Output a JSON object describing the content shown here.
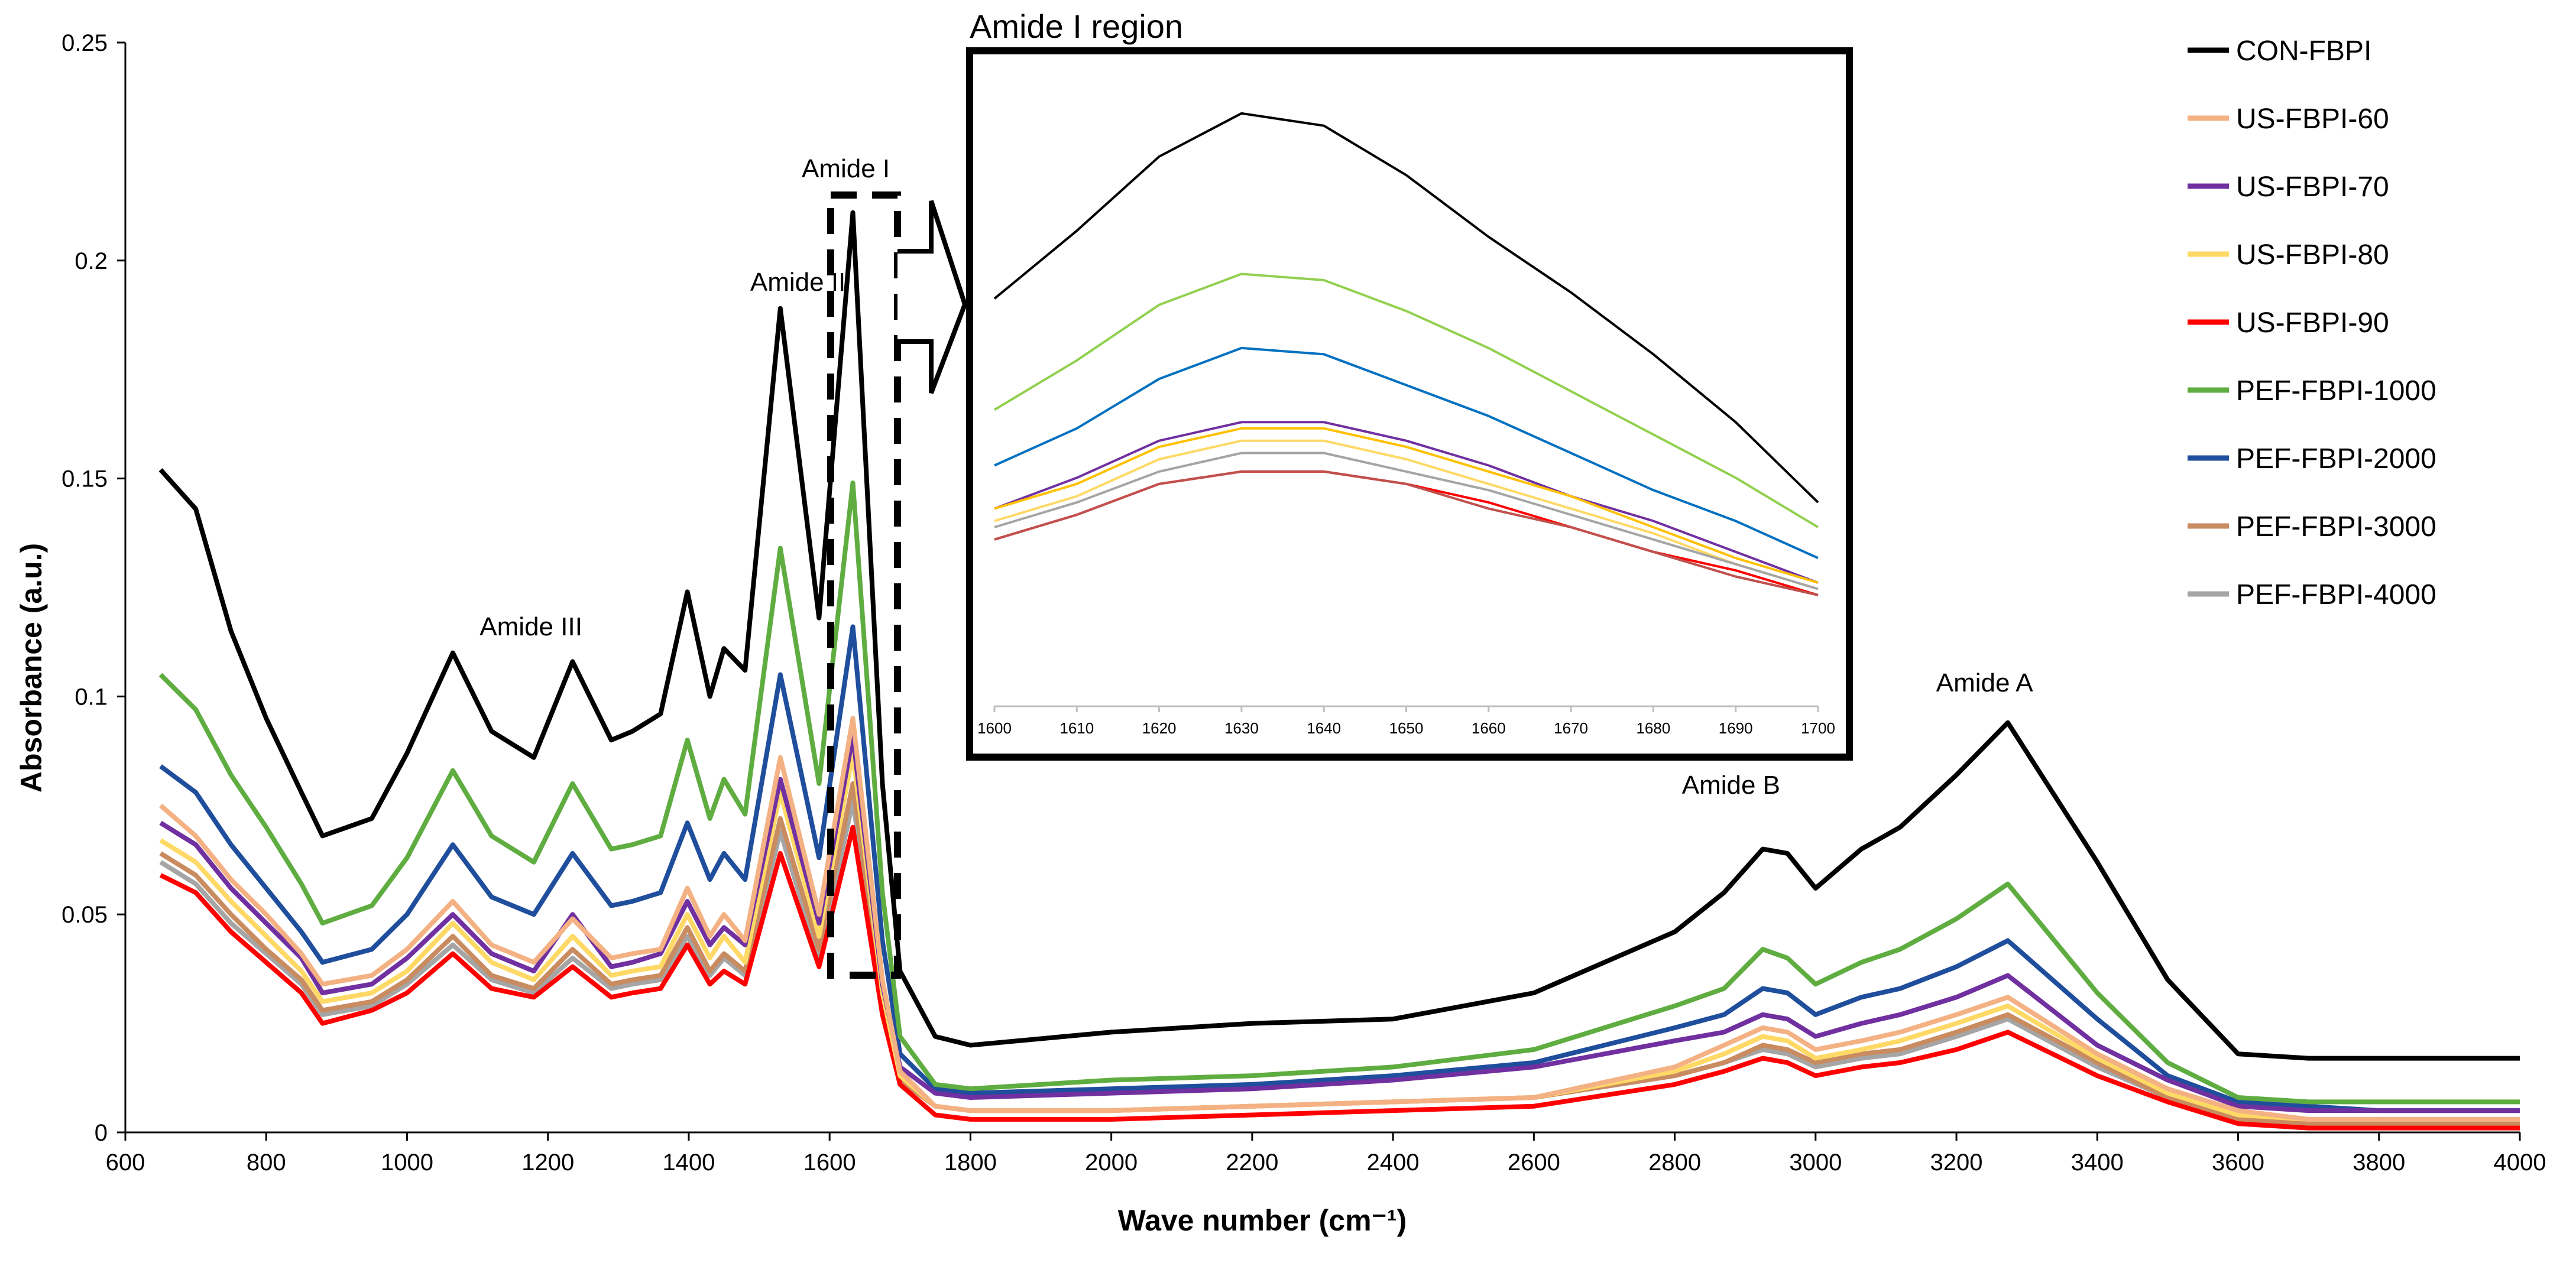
{
  "chart_data": [
    {
      "type": "line",
      "title": "",
      "xlabel": "Wave number (cm⁻¹)",
      "ylabel": "Absorbance (a.u.)",
      "xlim": [
        600,
        4000
      ],
      "ylim": [
        0,
        0.25
      ],
      "xticks": [
        "600",
        "800",
        "1000",
        "1200",
        "1400",
        "1600",
        "1800",
        "2000",
        "2200",
        "2400",
        "2600",
        "2800",
        "3000",
        "3200",
        "3400",
        "3600",
        "3800",
        "4000"
      ],
      "yticks": [
        "0",
        "0.05",
        "0.1",
        "0.15",
        "0.2",
        "0.25"
      ],
      "legend_position": "right",
      "x": [
        650,
        700,
        750,
        800,
        850,
        880,
        950,
        1000,
        1065,
        1120,
        1180,
        1235,
        1290,
        1320,
        1360,
        1398,
        1430,
        1450,
        1480,
        1530,
        1585,
        1633,
        1675,
        1700,
        1750,
        1800,
        2000,
        2200,
        2400,
        2600,
        2800,
        2870,
        2925,
        2960,
        3000,
        3065,
        3120,
        3200,
        3273,
        3400,
        3500,
        3600,
        3700,
        3800,
        4000
      ],
      "series": [
        {
          "name": "CON-FBPI",
          "color": "#000000",
          "values": [
            0.152,
            0.143,
            0.115,
            0.095,
            0.078,
            0.068,
            0.072,
            0.087,
            0.11,
            0.092,
            0.086,
            0.108,
            0.09,
            0.092,
            0.096,
            0.124,
            0.1,
            0.111,
            0.106,
            0.189,
            0.118,
            0.211,
            0.08,
            0.037,
            0.022,
            0.02,
            0.023,
            0.025,
            0.026,
            0.032,
            0.046,
            0.055,
            0.065,
            0.064,
            0.056,
            0.065,
            0.07,
            0.082,
            0.094,
            0.062,
            0.035,
            0.018,
            0.017,
            0.017,
            0.017
          ]
        },
        {
          "name": "US-FBPI-60",
          "color": "#F4B183",
          "values": [
            0.075,
            0.068,
            0.058,
            0.05,
            0.041,
            0.034,
            0.036,
            0.042,
            0.053,
            0.043,
            0.039,
            0.049,
            0.04,
            0.041,
            0.042,
            0.056,
            0.045,
            0.05,
            0.044,
            0.086,
            0.05,
            0.095,
            0.035,
            0.014,
            0.006,
            0.005,
            0.005,
            0.006,
            0.007,
            0.008,
            0.015,
            0.02,
            0.024,
            0.023,
            0.019,
            0.021,
            0.023,
            0.027,
            0.031,
            0.018,
            0.01,
            0.005,
            0.003,
            0.003,
            0.003
          ]
        },
        {
          "name": "US-FBPI-70",
          "color": "#7030A0",
          "values": [
            0.071,
            0.066,
            0.056,
            0.048,
            0.04,
            0.032,
            0.034,
            0.04,
            0.05,
            0.041,
            0.037,
            0.05,
            0.038,
            0.039,
            0.041,
            0.053,
            0.043,
            0.047,
            0.043,
            0.081,
            0.048,
            0.091,
            0.034,
            0.015,
            0.009,
            0.008,
            0.009,
            0.01,
            0.012,
            0.015,
            0.021,
            0.023,
            0.027,
            0.026,
            0.022,
            0.025,
            0.027,
            0.031,
            0.036,
            0.02,
            0.012,
            0.006,
            0.005,
            0.005,
            0.005
          ]
        },
        {
          "name": "US-FBPI-80",
          "color": "#FFD966",
          "values": [
            0.067,
            0.062,
            0.053,
            0.045,
            0.037,
            0.03,
            0.032,
            0.037,
            0.048,
            0.039,
            0.035,
            0.045,
            0.036,
            0.037,
            0.038,
            0.05,
            0.04,
            0.045,
            0.039,
            0.078,
            0.045,
            0.087,
            0.032,
            0.013,
            0.006,
            0.005,
            0.005,
            0.006,
            0.007,
            0.008,
            0.014,
            0.018,
            0.022,
            0.021,
            0.017,
            0.019,
            0.021,
            0.025,
            0.029,
            0.017,
            0.009,
            0.004,
            0.003,
            0.003,
            0.003
          ]
        },
        {
          "name": "US-FBPI-90",
          "color": "#FF0000",
          "values": [
            0.059,
            0.055,
            0.046,
            0.039,
            0.032,
            0.025,
            0.028,
            0.032,
            0.041,
            0.033,
            0.031,
            0.038,
            0.031,
            0.032,
            0.033,
            0.043,
            0.034,
            0.037,
            0.034,
            0.064,
            0.038,
            0.07,
            0.027,
            0.011,
            0.004,
            0.003,
            0.003,
            0.004,
            0.005,
            0.006,
            0.011,
            0.014,
            0.017,
            0.016,
            0.013,
            0.015,
            0.016,
            0.019,
            0.023,
            0.013,
            0.007,
            0.002,
            0.001,
            0.001,
            0.001
          ]
        },
        {
          "name": "PEF-FBPI-1000",
          "color": "#5FAD41",
          "values": [
            0.105,
            0.097,
            0.082,
            0.07,
            0.057,
            0.048,
            0.052,
            0.063,
            0.083,
            0.068,
            0.062,
            0.08,
            0.065,
            0.066,
            0.068,
            0.09,
            0.072,
            0.081,
            0.073,
            0.134,
            0.08,
            0.149,
            0.055,
            0.022,
            0.011,
            0.01,
            0.012,
            0.013,
            0.015,
            0.019,
            0.029,
            0.033,
            0.042,
            0.04,
            0.034,
            0.039,
            0.042,
            0.049,
            0.057,
            0.032,
            0.016,
            0.008,
            0.007,
            0.007,
            0.007
          ]
        },
        {
          "name": "PEF-FBPI-2000",
          "color": "#1F4E9C",
          "values": [
            0.084,
            0.078,
            0.066,
            0.056,
            0.046,
            0.039,
            0.042,
            0.05,
            0.066,
            0.054,
            0.05,
            0.064,
            0.052,
            0.053,
            0.055,
            0.071,
            0.058,
            0.064,
            0.058,
            0.105,
            0.063,
            0.116,
            0.044,
            0.018,
            0.01,
            0.009,
            0.01,
            0.011,
            0.013,
            0.016,
            0.024,
            0.027,
            0.033,
            0.032,
            0.027,
            0.031,
            0.033,
            0.038,
            0.044,
            0.026,
            0.013,
            0.007,
            0.006,
            0.005,
            0.005
          ]
        },
        {
          "name": "PEF-FBPI-3000",
          "color": "#C98B60",
          "values": [
            0.064,
            0.059,
            0.05,
            0.042,
            0.035,
            0.028,
            0.03,
            0.035,
            0.045,
            0.036,
            0.033,
            0.042,
            0.034,
            0.035,
            0.036,
            0.047,
            0.037,
            0.041,
            0.037,
            0.072,
            0.042,
            0.08,
            0.03,
            0.012,
            0.006,
            0.005,
            0.005,
            0.006,
            0.007,
            0.008,
            0.013,
            0.016,
            0.02,
            0.019,
            0.016,
            0.018,
            0.019,
            0.023,
            0.027,
            0.016,
            0.008,
            0.003,
            0.002,
            0.002,
            0.002
          ]
        },
        {
          "name": "PEF-FBPI-4000",
          "color": "#A5A5A5",
          "values": [
            0.062,
            0.057,
            0.048,
            0.041,
            0.034,
            0.027,
            0.029,
            0.034,
            0.043,
            0.035,
            0.032,
            0.04,
            0.033,
            0.034,
            0.035,
            0.045,
            0.036,
            0.04,
            0.036,
            0.069,
            0.04,
            0.076,
            0.029,
            0.012,
            0.006,
            0.005,
            0.005,
            0.006,
            0.007,
            0.008,
            0.013,
            0.016,
            0.019,
            0.018,
            0.015,
            0.017,
            0.018,
            0.022,
            0.026,
            0.015,
            0.008,
            0.003,
            0.002,
            0.002,
            0.002
          ]
        }
      ],
      "annotations": [
        "Amide III",
        "Amide II",
        "Amide I",
        "Amide B",
        "Amide A"
      ],
      "annotation_x": [
        1176,
        1555,
        1623,
        2880,
        3240
      ]
    },
    {
      "type": "line",
      "title": "Amide I region",
      "xlim": [
        1600,
        1700
      ],
      "ylim": [
        0,
        1
      ],
      "xticks": [
        "1600",
        "1610",
        "1620",
        "1630",
        "1640",
        "1650",
        "1660",
        "1670",
        "1680",
        "1690",
        "1700"
      ],
      "x": [
        1600,
        1610,
        1620,
        1630,
        1640,
        1650,
        1660,
        1670,
        1680,
        1690,
        1700
      ],
      "series": [
        {
          "name": "CON-FBPI",
          "color": "#000000",
          "values": [
            0.66,
            0.77,
            0.89,
            0.96,
            0.94,
            0.86,
            0.76,
            0.67,
            0.57,
            0.46,
            0.33
          ]
        },
        {
          "name": "PEF-FBPI-1000",
          "color": "#92D050",
          "values": [
            0.48,
            0.56,
            0.65,
            0.7,
            0.69,
            0.64,
            0.58,
            0.51,
            0.44,
            0.37,
            0.29
          ]
        },
        {
          "name": "PEF-FBPI-2000",
          "color": "#0070C0",
          "values": [
            0.39,
            0.45,
            0.53,
            0.58,
            0.57,
            0.52,
            0.47,
            0.41,
            0.35,
            0.3,
            0.24
          ]
        },
        {
          "name": "US-FBPI-70",
          "color": "#7030A0",
          "values": [
            0.32,
            0.37,
            0.43,
            0.46,
            0.46,
            0.43,
            0.39,
            0.34,
            0.3,
            0.25,
            0.2
          ]
        },
        {
          "name": "US-FBPI-80 (a)",
          "color": "#FFC000",
          "values": [
            0.32,
            0.36,
            0.42,
            0.45,
            0.45,
            0.42,
            0.38,
            0.34,
            0.29,
            0.24,
            0.2
          ]
        },
        {
          "name": "US-FBPI-80 (b)",
          "color": "#FFD966",
          "values": [
            0.3,
            0.34,
            0.4,
            0.43,
            0.43,
            0.4,
            0.36,
            0.32,
            0.28,
            0.23,
            0.19
          ]
        },
        {
          "name": "PEF-FBPI-4000",
          "color": "#A5A5A5",
          "values": [
            0.29,
            0.33,
            0.38,
            0.41,
            0.41,
            0.38,
            0.35,
            0.31,
            0.27,
            0.23,
            0.19
          ]
        },
        {
          "name": "US-FBPI-90",
          "color": "#FF0000",
          "values": [
            0.27,
            0.31,
            0.36,
            0.38,
            0.38,
            0.36,
            0.33,
            0.29,
            0.25,
            0.22,
            0.18
          ]
        },
        {
          "name": "PEF-FBPI-3000",
          "color": "#C0504D",
          "values": [
            0.27,
            0.31,
            0.36,
            0.38,
            0.38,
            0.36,
            0.32,
            0.29,
            0.25,
            0.21,
            0.18
          ]
        }
      ]
    }
  ],
  "legend": [
    {
      "label": "CON-FBPI",
      "color": "#000000"
    },
    {
      "label": "US-FBPI-60",
      "color": "#F4B183"
    },
    {
      "label": "US-FBPI-70",
      "color": "#7030A0"
    },
    {
      "label": "US-FBPI-80",
      "color": "#FFD966"
    },
    {
      "label": "US-FBPI-90",
      "color": "#FF0000"
    },
    {
      "label": "PEF-FBPI-1000",
      "color": "#5FAD41"
    },
    {
      "label": "PEF-FBPI-2000",
      "color": "#1F4E9C"
    },
    {
      "label": "PEF-FBPI-3000",
      "color": "#C98B60"
    },
    {
      "label": "PEF-FBPI-4000",
      "color": "#A5A5A5"
    }
  ]
}
